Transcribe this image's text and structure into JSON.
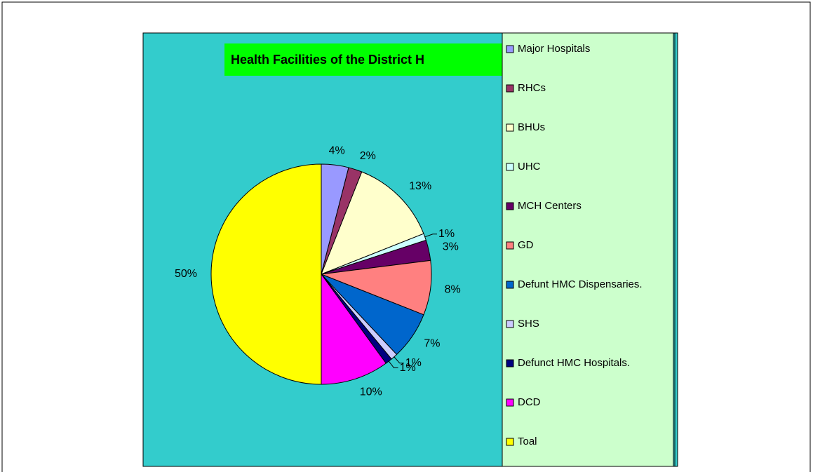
{
  "chart_data": {
    "type": "pie",
    "title": "Health Facilities of the District H",
    "categories": [
      "Major Hospitals",
      "RHCs",
      "BHUs",
      "UHC",
      "MCH Centers",
      "GD",
      "Defunt HMC Dispensaries.",
      "SHS",
      "Defunct HMC Hospitals.",
      "DCD",
      "Toal"
    ],
    "values": [
      4,
      2,
      13,
      1,
      3,
      8,
      7,
      1,
      1,
      10,
      50
    ],
    "value_labels": [
      "4%",
      "2%",
      "13%",
      "1%",
      "3%",
      "8%",
      "7%",
      "1%",
      "1%",
      "10%",
      "50%"
    ],
    "colors": [
      "#9999ff",
      "#993366",
      "#ffffcc",
      "#ccffff",
      "#660066",
      "#ff8080",
      "#0066cc",
      "#ccccff",
      "#000080",
      "#ff00ff",
      "#ffff00"
    ],
    "legend": "right"
  }
}
